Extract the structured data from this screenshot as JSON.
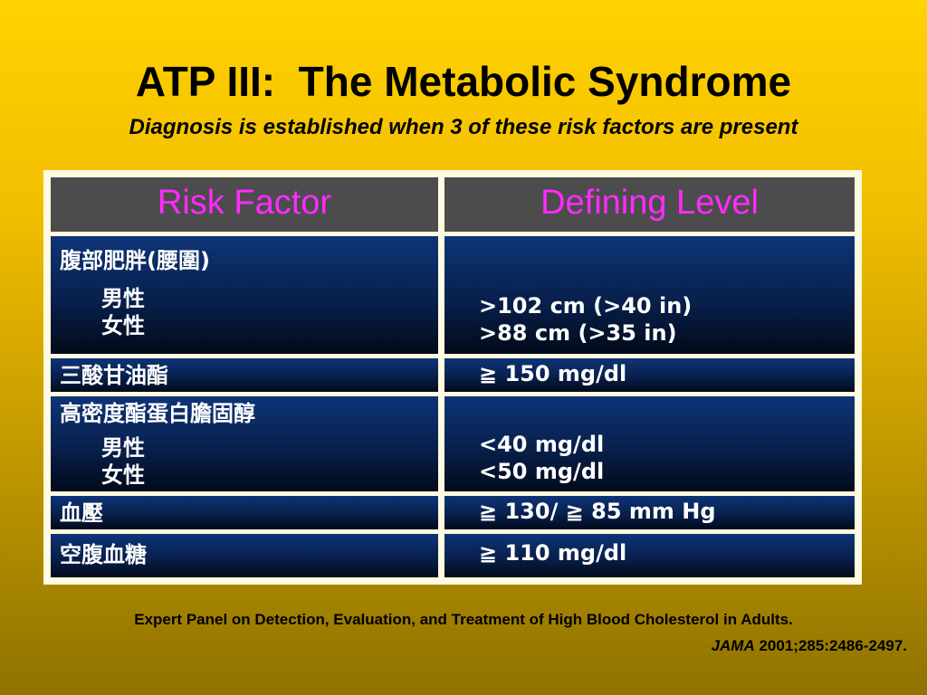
{
  "slide": {
    "title": "ATP III:  The Metabolic Syndrome",
    "subtitle": "Diagnosis is established when 3 of these risk factors are present"
  },
  "table": {
    "headers": [
      "Risk Factor",
      "Defining Level"
    ],
    "rows": [
      {
        "factor": "腹部肥胖(腰圍)",
        "sub": [
          "男性",
          "女性"
        ],
        "levels": [
          ">102 cm (>40 in)",
          ">88 cm (>35 in)"
        ]
      },
      {
        "factor": "三酸甘油酯",
        "level": "≧ 150 mg/dl"
      },
      {
        "factor": "高密度酯蛋白膽固醇",
        "sub": [
          "男性",
          "女性"
        ],
        "levels": [
          "<40 mg/dl",
          "<50 mg/dl"
        ]
      },
      {
        "factor": "血壓",
        "level": "≧ 130/ ≧ 85 mm Hg"
      },
      {
        "factor": "空腹血糖",
        "level": "≧ 110 mg/dl"
      }
    ]
  },
  "citation": {
    "line1": "Expert Panel on Detection, Evaluation, and Treatment of High Blood Cholesterol in Adults.",
    "journal": "JAMA",
    "ref": " 2001;285:2486-2497."
  },
  "colors": {
    "header_text": "#ff2bff",
    "header_bg": "#4c4c4c",
    "cell_bg": "#0e3478",
    "frame": "#fffbe0"
  }
}
